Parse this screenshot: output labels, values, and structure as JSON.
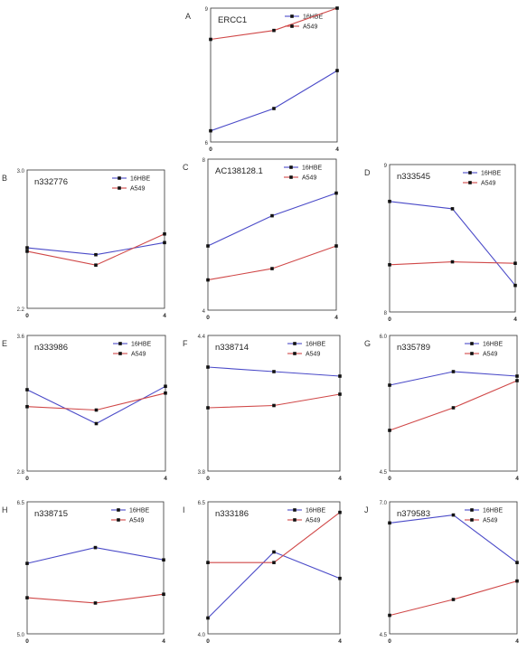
{
  "series_colors": {
    "16HBE": "#4a4ac8",
    "A549": "#d04848"
  },
  "chart_data": [
    {
      "panel": "A",
      "type": "line",
      "title": "ERCC1",
      "x": [
        0,
        2,
        4
      ],
      "xticks": [
        "0",
        "4"
      ],
      "ylim": [
        6,
        9
      ],
      "yticks": [
        "6",
        "9"
      ],
      "series": [
        {
          "name": "16HBE",
          "values": [
            6.25,
            6.75,
            7.6
          ]
        },
        {
          "name": "A549",
          "values": [
            8.3,
            8.5,
            9.0
          ]
        }
      ]
    },
    {
      "panel": "B",
      "type": "line",
      "title": "n332776",
      "x": [
        0,
        2,
        4
      ],
      "xticks": [
        "0",
        "4"
      ],
      "ylim": [
        2.2,
        3.0
      ],
      "yticks": [
        "2.2",
        "3.0"
      ],
      "series": [
        {
          "name": "16HBE",
          "values": [
            2.55,
            2.51,
            2.58
          ]
        },
        {
          "name": "A549",
          "values": [
            2.53,
            2.45,
            2.63
          ]
        }
      ]
    },
    {
      "panel": "C",
      "type": "line",
      "title": "AC138128.1",
      "x": [
        0,
        2,
        4
      ],
      "xticks": [
        "0",
        "4"
      ],
      "ylim": [
        4,
        8
      ],
      "yticks": [
        "4",
        "8"
      ],
      "series": [
        {
          "name": "16HBE",
          "values": [
            5.7,
            6.5,
            7.1
          ]
        },
        {
          "name": "A549",
          "values": [
            4.8,
            5.1,
            5.7
          ]
        }
      ]
    },
    {
      "panel": "D",
      "type": "line",
      "title": "n333545",
      "x": [
        0,
        2,
        4
      ],
      "xticks": [
        "0",
        "4"
      ],
      "ylim": [
        8,
        9
      ],
      "yticks": [
        "8",
        "9"
      ],
      "series": [
        {
          "name": "16HBE",
          "values": [
            8.75,
            8.7,
            8.18
          ]
        },
        {
          "name": "A549",
          "values": [
            8.32,
            8.34,
            8.33
          ]
        }
      ]
    },
    {
      "panel": "E",
      "type": "line",
      "title": "n333986",
      "x": [
        0,
        2,
        4
      ],
      "xticks": [
        "0",
        "4"
      ],
      "ylim": [
        2.8,
        3.6
      ],
      "yticks": [
        "2.8",
        "3.6"
      ],
      "series": [
        {
          "name": "16HBE",
          "values": [
            3.28,
            3.08,
            3.3
          ]
        },
        {
          "name": "A549",
          "values": [
            3.18,
            3.16,
            3.26
          ]
        }
      ]
    },
    {
      "panel": "F",
      "type": "line",
      "title": "n338714",
      "x": [
        0,
        2,
        4
      ],
      "xticks": [
        "0",
        "4"
      ],
      "ylim": [
        3.8,
        4.4
      ],
      "yticks": [
        "3.8",
        "4.4"
      ],
      "series": [
        {
          "name": "16HBE",
          "values": [
            4.26,
            4.24,
            4.22
          ]
        },
        {
          "name": "A549",
          "values": [
            4.08,
            4.09,
            4.14
          ]
        }
      ]
    },
    {
      "panel": "G",
      "type": "line",
      "title": "n335789",
      "x": [
        0,
        2,
        4
      ],
      "xticks": [
        "0",
        "4"
      ],
      "ylim": [
        4.5,
        6.0
      ],
      "yticks": [
        "4.5",
        "6.0"
      ],
      "series": [
        {
          "name": "16HBE",
          "values": [
            5.45,
            5.6,
            5.55
          ]
        },
        {
          "name": "A549",
          "values": [
            4.95,
            5.2,
            5.5
          ]
        }
      ]
    },
    {
      "panel": "H",
      "type": "line",
      "title": "n338715",
      "x": [
        0,
        2,
        4
      ],
      "xticks": [
        "0",
        "4"
      ],
      "ylim": [
        5.0,
        6.5
      ],
      "yticks": [
        "5.0",
        "6.5"
      ],
      "series": [
        {
          "name": "16HBE",
          "values": [
            5.8,
            5.98,
            5.84
          ]
        },
        {
          "name": "A549",
          "values": [
            5.41,
            5.35,
            5.45
          ]
        }
      ]
    },
    {
      "panel": "I",
      "type": "line",
      "title": "n333186",
      "x": [
        0,
        2,
        4
      ],
      "xticks": [
        "0",
        "4"
      ],
      "ylim": [
        4.0,
        6.5
      ],
      "yticks": [
        "4.0",
        "6.5"
      ],
      "series": [
        {
          "name": "16HBE",
          "values": [
            4.3,
            5.55,
            5.05
          ]
        },
        {
          "name": "A549",
          "values": [
            5.35,
            5.35,
            6.3
          ]
        }
      ]
    },
    {
      "panel": "J",
      "type": "line",
      "title": "n379583",
      "x": [
        0,
        2,
        4
      ],
      "xticks": [
        "0",
        "4"
      ],
      "ylim": [
        4.5,
        7.0
      ],
      "yticks": [
        "4.5",
        "7.0"
      ],
      "series": [
        {
          "name": "16HBE",
          "values": [
            6.6,
            6.75,
            5.85
          ]
        },
        {
          "name": "A549",
          "values": [
            4.85,
            5.15,
            5.5
          ]
        }
      ]
    }
  ]
}
